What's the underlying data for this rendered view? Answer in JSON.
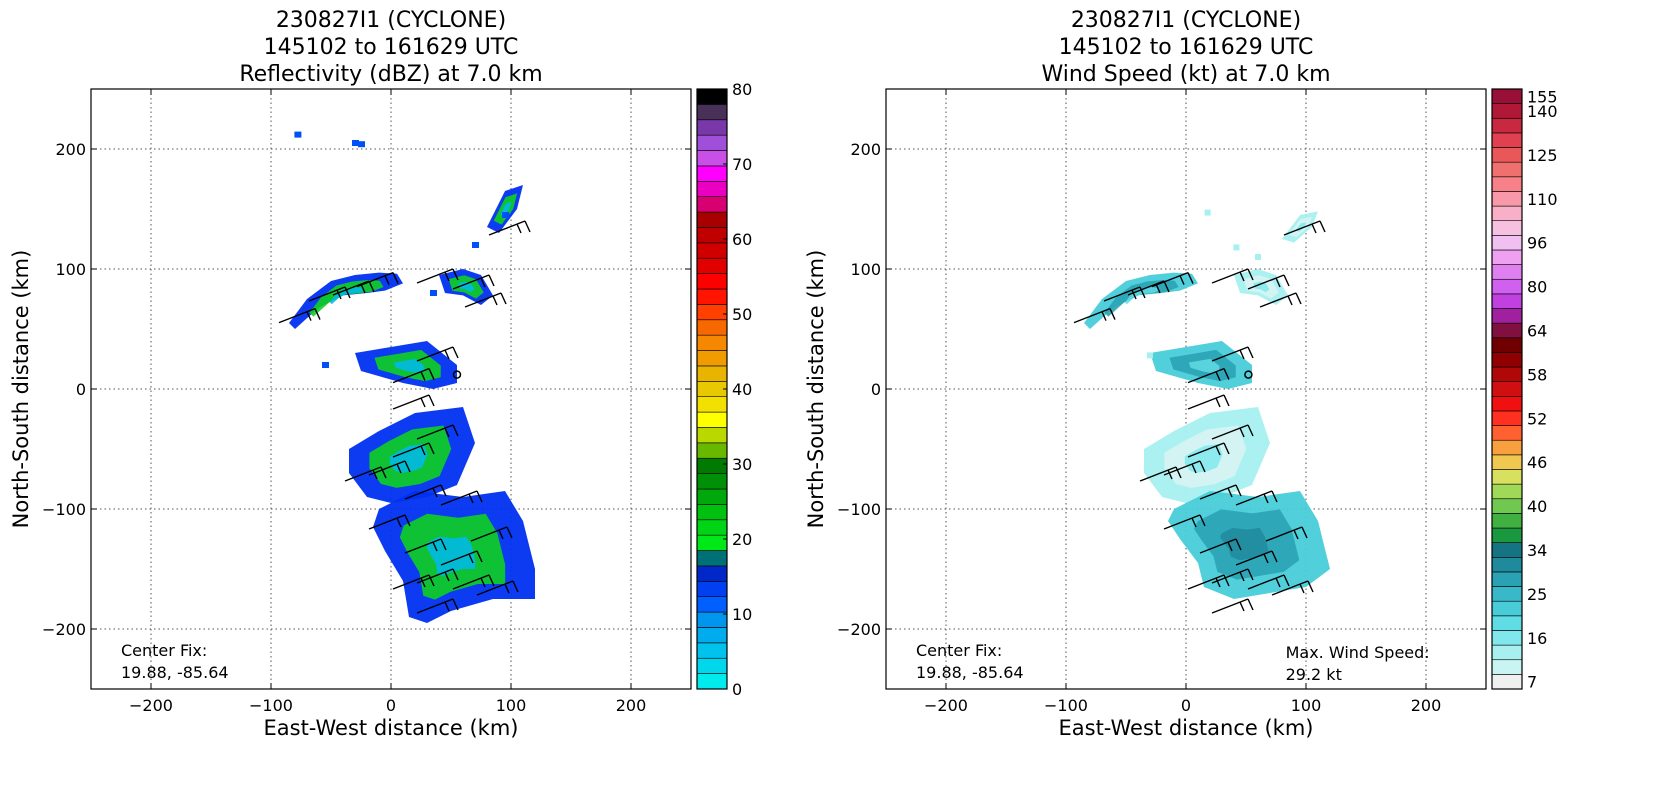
{
  "chart_data": [
    {
      "type": "heatmap",
      "title_lines": [
        "230827I1 (CYCLONE)",
        "145102 to 161629 UTC",
        "Reflectivity (dBZ) at 7.0 km"
      ],
      "xlabel": "East-West distance (km)",
      "ylabel": "North-South distance (km)",
      "xlim": [
        -250,
        250
      ],
      "ylim": [
        -250,
        250
      ],
      "xticks": [
        -200,
        -100,
        0,
        100,
        200
      ],
      "yticks": [
        -200,
        -100,
        0,
        100,
        200
      ],
      "grid": true,
      "annotations": [
        {
          "lines": [
            "Center Fix:",
            "19.88, -85.64"
          ],
          "position": "bottom-left"
        }
      ],
      "colorbar": {
        "min": 0,
        "max": 80,
        "ticks": [
          0,
          10,
          20,
          30,
          40,
          50,
          60,
          70,
          80
        ],
        "colors": [
          "#00ecec",
          "#00d6ec",
          "#00c2ec",
          "#00aced",
          "#0096ee",
          "#0060ff",
          "#0040f0",
          "#0028c8",
          "#007078",
          "#00e818",
          "#00d414",
          "#00c010",
          "#00a80c",
          "#009008",
          "#007a00",
          "#68b800",
          "#b8d800",
          "#ffff00",
          "#f2e000",
          "#e8c800",
          "#e8b400",
          "#f09c00",
          "#f58800",
          "#f86800",
          "#ff4000",
          "#ff1400",
          "#ff0000",
          "#e00000",
          "#d00000",
          "#c00000",
          "#a80000",
          "#d80070",
          "#ea00c0",
          "#ff00ff",
          "#c850e8",
          "#a050d8",
          "#7838a8",
          "#483058",
          "#000000"
        ]
      },
      "field_regions": [
        {
          "name": "northwest band",
          "points": [
            [
              -85,
              55
            ],
            [
              -70,
              75
            ],
            [
              -50,
              90
            ],
            [
              -30,
              95
            ],
            [
              -10,
              97
            ],
            [
              5,
              96
            ],
            [
              10,
              88
            ],
            [
              -5,
              82
            ],
            [
              -20,
              80
            ],
            [
              -40,
              78
            ],
            [
              -60,
              68
            ],
            [
              -80,
              50
            ]
          ],
          "level": "mixed"
        },
        {
          "name": "north blob",
          "points": [
            [
              80,
              135
            ],
            [
              95,
              165
            ],
            [
              110,
              170
            ],
            [
              105,
              150
            ],
            [
              90,
              130
            ]
          ],
          "level": "mixed"
        },
        {
          "name": "small north cells",
          "points": [
            [
              40,
              95
            ],
            [
              60,
              100
            ],
            [
              75,
              95
            ],
            [
              85,
              78
            ],
            [
              75,
              70
            ],
            [
              60,
              78
            ],
            [
              45,
              80
            ]
          ],
          "level": "mixed"
        },
        {
          "name": "mid cell",
          "points": [
            [
              -30,
              30
            ],
            [
              0,
              35
            ],
            [
              30,
              40
            ],
            [
              55,
              20
            ],
            [
              55,
              5
            ],
            [
              35,
              0
            ],
            [
              10,
              5
            ],
            [
              -25,
              15
            ]
          ],
          "level": "mixed"
        },
        {
          "name": "central band",
          "points": [
            [
              -35,
              -50
            ],
            [
              -10,
              -35
            ],
            [
              20,
              -20
            ],
            [
              60,
              -15
            ],
            [
              70,
              -45
            ],
            [
              55,
              -80
            ],
            [
              30,
              -90
            ],
            [
              0,
              -95
            ],
            [
              -20,
              -90
            ],
            [
              -35,
              -70
            ]
          ],
          "level": "mixed"
        },
        {
          "name": "south core",
          "points": [
            [
              -10,
              -100
            ],
            [
              20,
              -85
            ],
            [
              60,
              -90
            ],
            [
              95,
              -85
            ],
            [
              110,
              -110
            ],
            [
              120,
              -150
            ],
            [
              120,
              -175
            ],
            [
              85,
              -175
            ],
            [
              50,
              -185
            ],
            [
              30,
              -195
            ],
            [
              15,
              -190
            ],
            [
              10,
              -160
            ],
            [
              -5,
              -135
            ],
            [
              -15,
              -115
            ]
          ],
          "level": "mixed"
        }
      ],
      "barbs": [
        {
          "x": -75,
          "y": 62
        },
        {
          "x": -50,
          "y": 80
        },
        {
          "x": -30,
          "y": 85
        },
        {
          "x": -10,
          "y": 92
        },
        {
          "x": 40,
          "y": 95
        },
        {
          "x": 70,
          "y": 90
        },
        {
          "x": 100,
          "y": 135
        },
        {
          "x": 80,
          "y": 75
        },
        {
          "x": 40,
          "y": 30
        },
        {
          "x": 20,
          "y": 12
        },
        {
          "x": 20,
          "y": -10
        },
        {
          "x": 40,
          "y": -35
        },
        {
          "x": 20,
          "y": -50
        },
        {
          "x": 0,
          "y": -65
        },
        {
          "x": -20,
          "y": -70
        },
        {
          "x": 30,
          "y": -85
        },
        {
          "x": 60,
          "y": -90
        },
        {
          "x": 0,
          "y": -110
        },
        {
          "x": 30,
          "y": -130
        },
        {
          "x": 60,
          "y": -140
        },
        {
          "x": 85,
          "y": -120
        },
        {
          "x": 40,
          "y": -155
        },
        {
          "x": 70,
          "y": -160
        },
        {
          "x": 90,
          "y": -165
        },
        {
          "x": 40,
          "y": -180
        },
        {
          "x": 20,
          "y": -160
        }
      ],
      "center_marker": {
        "x": 55,
        "y": 12
      }
    },
    {
      "type": "heatmap",
      "title_lines": [
        "230827I1 (CYCLONE)",
        "145102 to 161629 UTC",
        "Wind Speed (kt) at 7.0 km"
      ],
      "xlabel": "East-West distance (km)",
      "ylabel": "North-South distance (km)",
      "xlim": [
        -250,
        250
      ],
      "ylim": [
        -250,
        250
      ],
      "xticks": [
        -200,
        -100,
        0,
        100,
        200
      ],
      "yticks": [
        -200,
        -100,
        0,
        100,
        200
      ],
      "grid": true,
      "annotations": [
        {
          "lines": [
            "Center Fix:",
            "19.88, -85.64"
          ],
          "position": "bottom-left"
        },
        {
          "lines": [
            "Max. Wind Speed:",
            "29.2 kt"
          ],
          "position": "bottom-right"
        }
      ],
      "colorbar": {
        "min": 5,
        "max": 160,
        "tick_labels": [
          "7",
          "16",
          "25",
          "34",
          "40",
          "46",
          "52",
          "58",
          "64",
          "80",
          "96",
          "110",
          "125",
          "140",
          "155"
        ],
        "tick_values": [
          7,
          16,
          25,
          34,
          40,
          46,
          52,
          58,
          64,
          80,
          96,
          110,
          125,
          140,
          155
        ],
        "colors": [
          "#f0f0f0",
          "#c8f4f4",
          "#a8f0f0",
          "#80e8ec",
          "#60dce4",
          "#48ccd8",
          "#38b8c8",
          "#2aa2b4",
          "#1e8a9c",
          "#157484",
          "#1a9840",
          "#40b040",
          "#70c850",
          "#a0d858",
          "#d8e060",
          "#f0c850",
          "#f8a040",
          "#ff6030",
          "#ff3020",
          "#f01010",
          "#d01010",
          "#b00808",
          "#900000",
          "#700000",
          "#801040",
          "#a020a0",
          "#c040e0",
          "#d060f0",
          "#e080f0",
          "#f0a0f0",
          "#f0c0f0",
          "#f8c0e0",
          "#f8b0c8",
          "#f898a8",
          "#f88088",
          "#f07070",
          "#e85858",
          "#e04050",
          "#c82840",
          "#b01838",
          "#981038"
        ]
      },
      "max_wind_kt": 29.2,
      "field_regions": [
        {
          "name": "northwest band",
          "points": [
            [
              -85,
              55
            ],
            [
              -70,
              75
            ],
            [
              -50,
              90
            ],
            [
              -30,
              95
            ],
            [
              -10,
              97
            ],
            [
              5,
              96
            ],
            [
              10,
              88
            ],
            [
              -5,
              82
            ],
            [
              -20,
              80
            ],
            [
              -40,
              78
            ],
            [
              -60,
              68
            ],
            [
              -80,
              50
            ]
          ],
          "level": "moderate"
        },
        {
          "name": "north blob",
          "points": [
            [
              80,
              125
            ],
            [
              95,
              145
            ],
            [
              110,
              148
            ],
            [
              105,
              135
            ],
            [
              90,
              122
            ]
          ],
          "level": "light"
        },
        {
          "name": "small north cells",
          "points": [
            [
              40,
              95
            ],
            [
              60,
              100
            ],
            [
              75,
              95
            ],
            [
              85,
              78
            ],
            [
              75,
              70
            ],
            [
              60,
              78
            ],
            [
              45,
              80
            ]
          ],
          "level": "light"
        },
        {
          "name": "mid cell",
          "points": [
            [
              -30,
              30
            ],
            [
              0,
              35
            ],
            [
              30,
              40
            ],
            [
              55,
              20
            ],
            [
              55,
              5
            ],
            [
              35,
              0
            ],
            [
              10,
              5
            ],
            [
              -25,
              15
            ]
          ],
          "level": "moderate"
        },
        {
          "name": "central band",
          "points": [
            [
              -35,
              -50
            ],
            [
              -10,
              -35
            ],
            [
              20,
              -20
            ],
            [
              60,
              -15
            ],
            [
              70,
              -45
            ],
            [
              55,
              -80
            ],
            [
              30,
              -90
            ],
            [
              0,
              -95
            ],
            [
              -20,
              -90
            ],
            [
              -35,
              -70
            ]
          ],
          "level": "light"
        },
        {
          "name": "south core",
          "points": [
            [
              -10,
              -100
            ],
            [
              20,
              -85
            ],
            [
              60,
              -90
            ],
            [
              95,
              -85
            ],
            [
              110,
              -110
            ],
            [
              120,
              -150
            ],
            [
              100,
              -165
            ],
            [
              70,
              -170
            ],
            [
              40,
              -175
            ],
            [
              15,
              -165
            ],
            [
              10,
              -145
            ],
            [
              -5,
              -125
            ],
            [
              -15,
              -110
            ]
          ],
          "level": "strong"
        }
      ],
      "barbs": [
        {
          "x": -75,
          "y": 62
        },
        {
          "x": -50,
          "y": 80
        },
        {
          "x": -30,
          "y": 85
        },
        {
          "x": -10,
          "y": 92
        },
        {
          "x": 40,
          "y": 95
        },
        {
          "x": 70,
          "y": 90
        },
        {
          "x": 100,
          "y": 135
        },
        {
          "x": 80,
          "y": 75
        },
        {
          "x": 40,
          "y": 30
        },
        {
          "x": 20,
          "y": 12
        },
        {
          "x": 20,
          "y": -10
        },
        {
          "x": 40,
          "y": -35
        },
        {
          "x": 20,
          "y": -50
        },
        {
          "x": 0,
          "y": -65
        },
        {
          "x": -20,
          "y": -70
        },
        {
          "x": 30,
          "y": -85
        },
        {
          "x": 60,
          "y": -90
        },
        {
          "x": 0,
          "y": -110
        },
        {
          "x": 30,
          "y": -130
        },
        {
          "x": 60,
          "y": -140
        },
        {
          "x": 85,
          "y": -120
        },
        {
          "x": 40,
          "y": -155
        },
        {
          "x": 70,
          "y": -160
        },
        {
          "x": 90,
          "y": -165
        },
        {
          "x": 40,
          "y": -180
        },
        {
          "x": 20,
          "y": -160
        }
      ],
      "center_marker": {
        "x": 52,
        "y": 12
      }
    }
  ]
}
